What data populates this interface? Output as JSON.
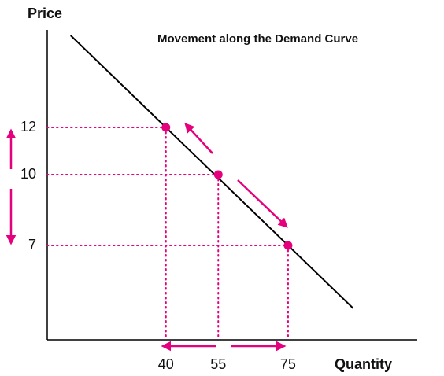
{
  "chart_data": {
    "type": "line",
    "title": "Movement along the Demand Curve",
    "x_label": "Quantity",
    "y_label": "Price",
    "x": [
      40,
      55,
      75
    ],
    "series": [
      {
        "color": "#e5007d",
        "values": [
          12,
          10,
          7
        ]
      }
    ],
    "line_color": "#000000",
    "xlim": [
      6,
      112
    ],
    "ylim": [
      3,
      16
    ],
    "xticks": [
      40,
      55,
      75
    ],
    "yticks": [
      12,
      10,
      7
    ]
  }
}
